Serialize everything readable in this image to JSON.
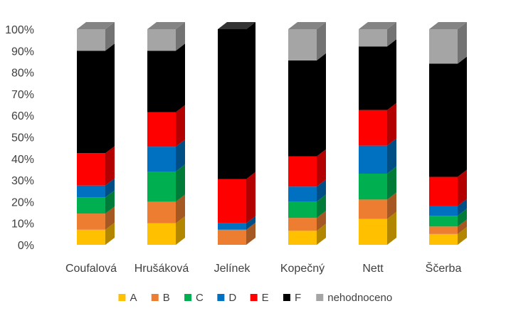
{
  "chart_data": {
    "type": "bar",
    "stacked": true,
    "percent": true,
    "style": "3d-stacked-column",
    "categories": [
      "Coufalová",
      "Hrušáková",
      "Jelínek",
      "Kopečný",
      "Nett",
      "Ščerba"
    ],
    "series": [
      {
        "name": "A",
        "color": "#FFC000",
        "values": [
          7,
          10,
          0,
          6.5,
          12,
          5
        ]
      },
      {
        "name": "B",
        "color": "#ED7D31",
        "values": [
          7.5,
          10,
          7,
          6,
          9,
          3.5
        ]
      },
      {
        "name": "C",
        "color": "#00B050",
        "values": [
          7.5,
          14,
          0,
          7.5,
          12,
          5
        ]
      },
      {
        "name": "D",
        "color": "#0070C0",
        "values": [
          5.5,
          11.5,
          3,
          7,
          13,
          4.5
        ]
      },
      {
        "name": "E",
        "color": "#FF0000",
        "values": [
          15,
          16,
          20.5,
          14,
          16.5,
          13.5
        ]
      },
      {
        "name": "F",
        "color": "#000000",
        "values": [
          47.5,
          28.5,
          69.5,
          44.5,
          29.5,
          52.5
        ]
      },
      {
        "name": "nehodnoceno",
        "color": "#A5A5A5",
        "values": [
          10,
          10,
          0,
          14.5,
          8,
          16
        ]
      }
    ],
    "y_ticks": [
      "0%",
      "10%",
      "20%",
      "30%",
      "40%",
      "50%",
      "60%",
      "70%",
      "80%",
      "90%",
      "100%"
    ],
    "ylim": [
      0,
      100
    ],
    "grid": false,
    "legend_position": "bottom",
    "title": "",
    "xlabel": "",
    "ylabel": ""
  }
}
